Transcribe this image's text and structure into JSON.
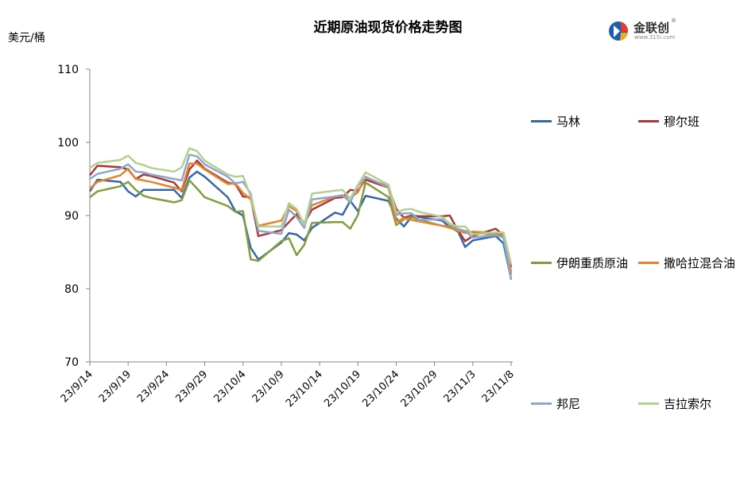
{
  "title": "近期原油现货价格走势图",
  "unit_label": "美元/桶",
  "logo": {
    "name": "金联创",
    "sub": "www.315i.com",
    "registered": "®"
  },
  "chart_data": {
    "type": "line",
    "title": "近期原油现货价格走势图",
    "ylabel": "美元/桶",
    "ylim": [
      70,
      110
    ],
    "yticks": [
      70,
      80,
      90,
      100,
      110
    ],
    "grid": false,
    "legend_position": "right",
    "xtick_labels": [
      "23/9/14",
      "23/9/19",
      "23/9/24",
      "23/9/29",
      "23/10/4",
      "23/10/9",
      "23/10/14",
      "23/10/19",
      "23/10/24",
      "23/10/29",
      "23/11/3",
      "23/11/8"
    ],
    "series": [
      {
        "name": "马林",
        "color": "#3867a8",
        "points": [
          [
            "23/9/14",
            93.3
          ],
          [
            "23/9/15",
            94.9
          ],
          [
            "23/9/18",
            94.6
          ],
          [
            "23/9/19",
            93.3
          ],
          [
            "23/9/20",
            92.6
          ],
          [
            "23/9/21",
            93.5
          ],
          [
            "23/9/22",
            93.5
          ],
          [
            "23/9/25",
            93.5
          ],
          [
            "23/9/26",
            92.4
          ],
          [
            "23/9/27",
            95.2
          ],
          [
            "23/9/28",
            96.0
          ],
          [
            "23/9/29",
            95.3
          ],
          [
            "23/10/2",
            92.5
          ],
          [
            "23/10/3",
            90.6
          ],
          [
            "23/10/4",
            90.0
          ],
          [
            "23/10/5",
            85.6
          ],
          [
            "23/10/6",
            84.0
          ],
          [
            "23/10/9",
            86.3
          ],
          [
            "23/10/10",
            87.6
          ],
          [
            "23/10/11",
            87.4
          ],
          [
            "23/10/12",
            86.6
          ],
          [
            "23/10/13",
            88.3
          ],
          [
            "23/10/16",
            90.4
          ],
          [
            "23/10/17",
            90.1
          ],
          [
            "23/10/18",
            92.0
          ],
          [
            "23/10/19",
            90.6
          ],
          [
            "23/10/20",
            92.7
          ],
          [
            "23/10/23",
            92.0
          ],
          [
            "23/10/24",
            89.6
          ],
          [
            "23/10/25",
            88.5
          ],
          [
            "23/10/26",
            89.8
          ],
          [
            "23/10/27",
            89.8
          ],
          [
            "23/10/30",
            89.3
          ],
          [
            "23/10/31",
            88.4
          ],
          [
            "23/11/1",
            88.0
          ],
          [
            "23/11/2",
            85.7
          ],
          [
            "23/11/3",
            86.6
          ],
          [
            "23/11/6",
            87.2
          ],
          [
            "23/11/7",
            86.2
          ],
          [
            "23/11/8",
            81.3
          ]
        ]
      },
      {
        "name": "穆尔班",
        "color": "#aa3a38",
        "points": [
          [
            "23/9/14",
            95.5
          ],
          [
            "23/9/15",
            96.8
          ],
          [
            "23/9/18",
            96.6
          ],
          [
            "23/9/19",
            96.3
          ],
          [
            "23/9/20",
            95.0
          ],
          [
            "23/9/21",
            95.6
          ],
          [
            "23/9/22",
            95.4
          ],
          [
            "23/9/25",
            94.5
          ],
          [
            "23/9/26",
            93.3
          ],
          [
            "23/9/27",
            96.3
          ],
          [
            "23/9/28",
            97.5
          ],
          [
            "23/9/29",
            96.4
          ],
          [
            "23/10/2",
            94.5
          ],
          [
            "23/10/3",
            94.3
          ],
          [
            "23/10/4",
            92.6
          ],
          [
            "23/10/5",
            92.5
          ],
          [
            "23/10/6",
            87.2
          ],
          [
            "23/10/9",
            88.0
          ],
          [
            "23/10/10",
            89.1
          ],
          [
            "23/10/11",
            90.2
          ],
          [
            "23/10/12",
            89.0
          ],
          [
            "23/10/13",
            90.8
          ],
          [
            "23/10/16",
            92.4
          ],
          [
            "23/10/17",
            92.5
          ],
          [
            "23/10/18",
            93.5
          ],
          [
            "23/10/19",
            93.4
          ],
          [
            "23/10/20",
            94.9
          ],
          [
            "23/10/23",
            93.8
          ],
          [
            "23/10/24",
            90.9
          ],
          [
            "23/10/25",
            89.7
          ],
          [
            "23/10/26",
            90.0
          ],
          [
            "23/10/27",
            89.9
          ],
          [
            "23/10/30",
            89.9
          ],
          [
            "23/10/31",
            90.0
          ],
          [
            "23/11/1",
            88.1
          ],
          [
            "23/11/2",
            86.5
          ],
          [
            "23/11/3",
            87.2
          ],
          [
            "23/11/6",
            88.2
          ],
          [
            "23/11/7",
            87.3
          ],
          [
            "23/11/8",
            82.9
          ]
        ]
      },
      {
        "name": "伊朗重质原油",
        "color": "#7f9e3e",
        "points": [
          [
            "23/9/14",
            92.5
          ],
          [
            "23/9/15",
            93.3
          ],
          [
            "23/9/18",
            94.0
          ],
          [
            "23/9/19",
            94.6
          ],
          [
            "23/9/20",
            93.5
          ],
          [
            "23/9/21",
            92.7
          ],
          [
            "23/9/22",
            92.4
          ],
          [
            "23/9/25",
            91.8
          ],
          [
            "23/9/26",
            92.1
          ],
          [
            "23/9/27",
            94.8
          ],
          [
            "23/9/28",
            93.7
          ],
          [
            "23/9/29",
            92.5
          ],
          [
            "23/10/2",
            91.3
          ],
          [
            "23/10/3",
            90.5
          ],
          [
            "23/10/4",
            90.6
          ],
          [
            "23/10/5",
            84.0
          ],
          [
            "23/10/6",
            83.8
          ],
          [
            "23/10/9",
            86.5
          ],
          [
            "23/10/10",
            86.9
          ],
          [
            "23/10/11",
            84.6
          ],
          [
            "23/10/12",
            86.0
          ],
          [
            "23/10/13",
            89.0
          ],
          [
            "23/10/16",
            89.1
          ],
          [
            "23/10/17",
            89.1
          ],
          [
            "23/10/18",
            88.2
          ],
          [
            "23/10/19",
            90.1
          ],
          [
            "23/10/20",
            94.5
          ],
          [
            "23/10/23",
            92.5
          ],
          [
            "23/10/24",
            88.7
          ],
          [
            "23/10/25",
            89.5
          ],
          [
            "23/10/26",
            89.8
          ],
          [
            "23/10/27",
            89.4
          ],
          [
            "23/10/30",
            88.6
          ],
          [
            "23/10/31",
            88.5
          ],
          [
            "23/11/1",
            87.8
          ],
          [
            "23/11/2",
            87.9
          ],
          [
            "23/11/3",
            87.6
          ],
          [
            "23/11/6",
            87.4
          ],
          [
            "23/11/7",
            87.3
          ],
          [
            "23/11/8",
            81.9
          ]
        ]
      },
      {
        "name": "撒哈拉混合油",
        "color": "#e6832f",
        "points": [
          [
            "23/9/14",
            93.7
          ],
          [
            "23/9/15",
            94.6
          ],
          [
            "23/9/18",
            95.5
          ],
          [
            "23/9/19",
            96.4
          ],
          [
            "23/9/20",
            95.0
          ],
          [
            "23/9/21",
            94.8
          ],
          [
            "23/9/22",
            94.6
          ],
          [
            "23/9/25",
            93.8
          ],
          [
            "23/9/26",
            93.5
          ],
          [
            "23/9/27",
            97.1
          ],
          [
            "23/9/28",
            97.1
          ],
          [
            "23/9/29",
            96.3
          ],
          [
            "23/10/2",
            94.3
          ],
          [
            "23/10/3",
            94.4
          ],
          [
            "23/10/4",
            93.1
          ],
          [
            "23/10/5",
            92.2
          ],
          [
            "23/10/6",
            88.6
          ],
          [
            "23/10/9",
            89.3
          ],
          [
            "23/10/10",
            91.3
          ],
          [
            "23/10/11",
            90.6
          ],
          [
            "23/10/12",
            88.9
          ],
          [
            "23/10/13",
            91.4
          ],
          [
            "23/10/16",
            92.6
          ],
          [
            "23/10/17",
            92.7
          ],
          [
            "23/10/18",
            92.4
          ],
          [
            "23/10/19",
            93.2
          ],
          [
            "23/10/20",
            95.3
          ],
          [
            "23/10/23",
            93.8
          ],
          [
            "23/10/24",
            89.2
          ],
          [
            "23/10/25",
            89.6
          ],
          [
            "23/10/26",
            89.4
          ],
          [
            "23/10/27",
            89.2
          ],
          [
            "23/10/30",
            88.6
          ],
          [
            "23/10/31",
            88.3
          ],
          [
            "23/11/1",
            88.0
          ],
          [
            "23/11/2",
            87.6
          ],
          [
            "23/11/3",
            87.8
          ],
          [
            "23/11/6",
            87.6
          ],
          [
            "23/11/7",
            87.5
          ],
          [
            "23/11/8",
            82.3
          ]
        ]
      },
      {
        "name": "邦尼",
        "color": "#8ea6cf",
        "points": [
          [
            "23/9/14",
            95.0
          ],
          [
            "23/9/15",
            95.7
          ],
          [
            "23/9/18",
            96.4
          ],
          [
            "23/9/19",
            97.0
          ],
          [
            "23/9/20",
            96.0
          ],
          [
            "23/9/21",
            95.9
          ],
          [
            "23/9/22",
            95.6
          ],
          [
            "23/9/25",
            95.0
          ],
          [
            "23/9/26",
            94.8
          ],
          [
            "23/9/27",
            98.3
          ],
          [
            "23/9/28",
            98.1
          ],
          [
            "23/9/29",
            97.0
          ],
          [
            "23/10/2",
            95.3
          ],
          [
            "23/10/3",
            94.4
          ],
          [
            "23/10/4",
            94.6
          ],
          [
            "23/10/5",
            93.0
          ],
          [
            "23/10/6",
            87.9
          ],
          [
            "23/10/9",
            87.5
          ],
          [
            "23/10/10",
            90.8
          ],
          [
            "23/10/11",
            89.8
          ],
          [
            "23/10/12",
            88.3
          ],
          [
            "23/10/13",
            92.2
          ],
          [
            "23/10/16",
            92.6
          ],
          [
            "23/10/17",
            92.8
          ],
          [
            "23/10/18",
            91.8
          ],
          [
            "23/10/19",
            94.1
          ],
          [
            "23/10/20",
            95.2
          ],
          [
            "23/10/23",
            94.0
          ],
          [
            "23/10/24",
            90.1
          ],
          [
            "23/10/25",
            90.3
          ],
          [
            "23/10/26",
            90.3
          ],
          [
            "23/10/27",
            89.4
          ],
          [
            "23/10/30",
            89.5
          ],
          [
            "23/10/31",
            88.8
          ],
          [
            "23/11/1",
            88.2
          ],
          [
            "23/11/2",
            87.9
          ],
          [
            "23/11/3",
            87.0
          ],
          [
            "23/11/6",
            87.3
          ],
          [
            "23/11/7",
            87.0
          ],
          [
            "23/11/8",
            81.2
          ]
        ]
      },
      {
        "name": "吉拉索尔",
        "color": "#b4cf92",
        "points": [
          [
            "23/9/14",
            96.5
          ],
          [
            "23/9/15",
            97.2
          ],
          [
            "23/9/18",
            97.6
          ],
          [
            "23/9/19",
            98.2
          ],
          [
            "23/9/20",
            97.2
          ],
          [
            "23/9/21",
            96.9
          ],
          [
            "23/9/22",
            96.5
          ],
          [
            "23/9/25",
            96.0
          ],
          [
            "23/9/26",
            96.6
          ],
          [
            "23/9/27",
            99.2
          ],
          [
            "23/9/28",
            98.8
          ],
          [
            "23/9/29",
            97.5
          ],
          [
            "23/10/2",
            95.6
          ],
          [
            "23/10/3",
            95.3
          ],
          [
            "23/10/4",
            95.4
          ],
          [
            "23/10/5",
            92.6
          ],
          [
            "23/10/6",
            88.5
          ],
          [
            "23/10/9",
            88.5
          ],
          [
            "23/10/10",
            91.7
          ],
          [
            "23/10/11",
            90.9
          ],
          [
            "23/10/12",
            88.7
          ],
          [
            "23/10/13",
            93.0
          ],
          [
            "23/10/16",
            93.4
          ],
          [
            "23/10/17",
            93.5
          ],
          [
            "23/10/18",
            92.3
          ],
          [
            "23/10/19",
            94.2
          ],
          [
            "23/10/20",
            95.9
          ],
          [
            "23/10/23",
            94.2
          ],
          [
            "23/10/24",
            90.4
          ],
          [
            "23/10/25",
            90.8
          ],
          [
            "23/10/26",
            90.9
          ],
          [
            "23/10/27",
            90.5
          ],
          [
            "23/10/30",
            89.8
          ],
          [
            "23/10/31",
            88.9
          ],
          [
            "23/11/1",
            88.5
          ],
          [
            "23/11/2",
            88.5
          ],
          [
            "23/11/3",
            87.4
          ],
          [
            "23/11/6",
            87.7
          ],
          [
            "23/11/7",
            87.7
          ],
          [
            "23/11/8",
            83.4
          ]
        ]
      }
    ]
  }
}
